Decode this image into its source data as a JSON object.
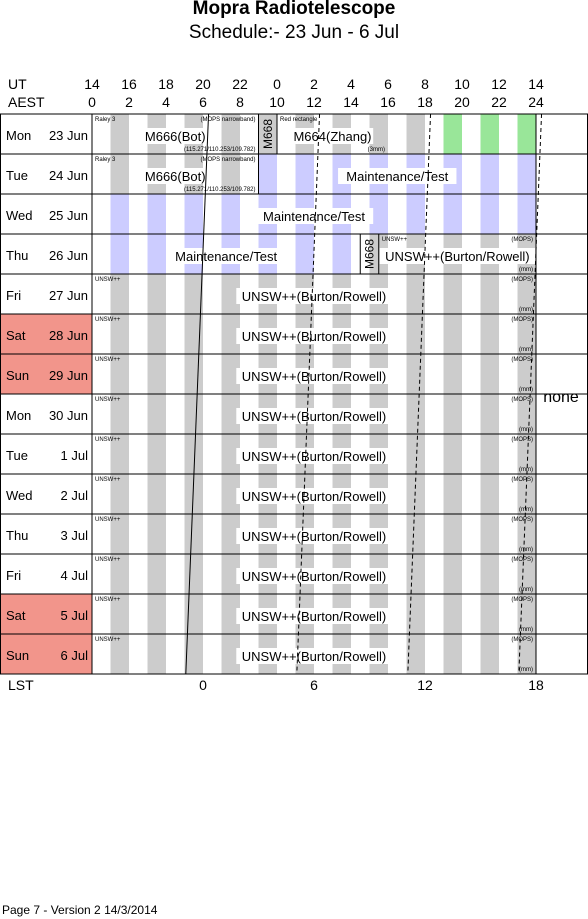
{
  "title": "Mopra Radiotelescope",
  "subtitle": "Schedule:- 23 Jun - 6  Jul",
  "footer": "Page 7 - Version 2  14/3/2014",
  "axes": {
    "ut_label": "UT",
    "aest_label": "AEST",
    "lst_label": "LST",
    "ut_ticks": [
      "14",
      "16",
      "18",
      "20",
      "22",
      "0",
      "2",
      "4",
      "6",
      "8",
      "10",
      "12",
      "14"
    ],
    "aest_ticks": [
      "0",
      "2",
      "4",
      "6",
      "8",
      "10",
      "12",
      "14",
      "16",
      "18",
      "20",
      "22",
      "24"
    ],
    "lst_ticks": [
      {
        "label": "0",
        "hour": 6
      },
      {
        "label": "6",
        "hour": 12
      },
      {
        "label": "12",
        "hour": 18
      },
      {
        "label": "18",
        "hour": 24
      }
    ]
  },
  "side_note": "none",
  "colors": {
    "grey_band": "#cccccc",
    "lavender_band": "#ccccff",
    "green_band": "#99e699",
    "weekend": "#f2958b",
    "grid": "#000000"
  },
  "days": [
    {
      "dow": "Mon",
      "date": "23 Jun",
      "weekend": false,
      "band_color": "grey",
      "green_from": 17.5,
      "blocks": [
        {
          "start": 0,
          "end": 9,
          "label": "M666(Bot)",
          "top_left": "Raley 3",
          "top_right": "(MOPS narrowband)",
          "bottom_right": "(115.271/110.253/109.782)"
        },
        {
          "start": 9,
          "end": 10,
          "label": "M668",
          "vertical": true
        },
        {
          "start": 10,
          "end": 16,
          "label": "M664(Zhang)",
          "top_left": "Red rectangle",
          "bottom_right": "(3mm)"
        }
      ]
    },
    {
      "dow": "Tue",
      "date": "24 Jun",
      "weekend": false,
      "band_color": "mixed",
      "lavender_from": 9,
      "blocks": [
        {
          "start": 0,
          "end": 9,
          "label": "M666(Bot)",
          "top_left": "Raley 3",
          "top_right": "(MOPS narrowband)",
          "bottom_right": "(115.271/110.253/109.782)"
        },
        {
          "start": 9,
          "end": 24,
          "label": "Maintenance/Test"
        }
      ]
    },
    {
      "dow": "Wed",
      "date": "25 Jun",
      "weekend": false,
      "band_color": "lavender",
      "blocks": [
        {
          "start": 0,
          "end": 24,
          "label": "Maintenance/Test"
        }
      ]
    },
    {
      "dow": "Thu",
      "date": "26 Jun",
      "weekend": false,
      "band_color": "mixed",
      "lavender_until": 15,
      "blocks": [
        {
          "start": 0,
          "end": 14.5,
          "label": "Maintenance/Test"
        },
        {
          "start": 14.5,
          "end": 15.5,
          "label": "M668",
          "vertical": true
        },
        {
          "start": 15.5,
          "end": 24,
          "label": "UNSW++(Burton/Rowell)",
          "top_left": "UNSW++",
          "top_right": "(MOPS)",
          "bottom_right": "(mm)"
        }
      ]
    },
    {
      "dow": "Fri",
      "date": "27 Jun",
      "weekend": false,
      "band_color": "grey",
      "blocks": [
        {
          "start": 0,
          "end": 24,
          "label": "UNSW++(Burton/Rowell)",
          "top_left": "UNSW++",
          "top_right": "(MOPS)",
          "bottom_right": "(mm)"
        }
      ]
    },
    {
      "dow": "Sat",
      "date": "28 Jun",
      "weekend": true,
      "band_color": "grey",
      "blocks": [
        {
          "start": 0,
          "end": 24,
          "label": "UNSW++(Burton/Rowell)",
          "top_left": "UNSW++",
          "top_right": "(MOPS)",
          "bottom_right": "(mm)"
        }
      ]
    },
    {
      "dow": "Sun",
      "date": "29 Jun",
      "weekend": true,
      "band_color": "grey",
      "blocks": [
        {
          "start": 0,
          "end": 24,
          "label": "UNSW++(Burton/Rowell)",
          "top_left": "UNSW++",
          "top_right": "(MOPS)",
          "bottom_right": "(mm)"
        }
      ]
    },
    {
      "dow": "Mon",
      "date": "30 Jun",
      "weekend": false,
      "band_color": "grey",
      "blocks": [
        {
          "start": 0,
          "end": 24,
          "label": "UNSW++(Burton/Rowell)",
          "top_left": "UNSW++",
          "top_right": "(MOPS)",
          "bottom_right": "(mm)"
        }
      ]
    },
    {
      "dow": "Tue",
      "date": "1  Jul",
      "weekend": false,
      "band_color": "grey",
      "blocks": [
        {
          "start": 0,
          "end": 24,
          "label": "UNSW++(Burton/Rowell)",
          "top_left": "UNSW++",
          "top_right": "(MOPS)",
          "bottom_right": "(mm)"
        }
      ]
    },
    {
      "dow": "Wed",
      "date": "2  Jul",
      "weekend": false,
      "band_color": "grey",
      "blocks": [
        {
          "start": 0,
          "end": 24,
          "label": "UNSW++(Burton/Rowell)",
          "top_left": "UNSW++",
          "top_right": "(MOPS)",
          "bottom_right": "(mm)"
        }
      ]
    },
    {
      "dow": "Thu",
      "date": "3  Jul",
      "weekend": false,
      "band_color": "grey",
      "blocks": [
        {
          "start": 0,
          "end": 24,
          "label": "UNSW++(Burton/Rowell)",
          "top_left": "UNSW++",
          "top_right": "(MOPS)",
          "bottom_right": "(mm)"
        }
      ]
    },
    {
      "dow": "Fri",
      "date": "4  Jul",
      "weekend": false,
      "band_color": "grey",
      "blocks": [
        {
          "start": 0,
          "end": 24,
          "label": "UNSW++(Burton/Rowell)",
          "top_left": "UNSW++",
          "top_right": "(MOPS)",
          "bottom_right": "(mm)"
        }
      ]
    },
    {
      "dow": "Sat",
      "date": "5  Jul",
      "weekend": true,
      "band_color": "grey",
      "blocks": [
        {
          "start": 0,
          "end": 24,
          "label": "UNSW++(Burton/Rowell)",
          "top_left": "UNSW++",
          "top_right": "(MOPS)",
          "bottom_right": "(mm)"
        }
      ]
    },
    {
      "dow": "Sun",
      "date": "6  Jul",
      "weekend": true,
      "band_color": "grey",
      "blocks": [
        {
          "start": 0,
          "end": 24,
          "label": "UNSW++(Burton/Rowell)",
          "top_left": "UNSW++",
          "top_right": "(MOPS)",
          "bottom_right": "(mm)"
        }
      ]
    }
  ],
  "lst_lines": [
    {
      "name": "lst-0",
      "hour_top": 6.3,
      "hour_bottom": 5.07,
      "dashed": false
    },
    {
      "name": "lst-6",
      "hour_top": 12.3,
      "hour_bottom": 11.07,
      "dashed": true
    },
    {
      "name": "lst-12",
      "hour_top": 18.3,
      "hour_bottom": 17.07,
      "dashed": true
    },
    {
      "name": "lst-18",
      "hour_top": 24.3,
      "hour_bottom": 23.07,
      "dashed": true
    }
  ]
}
